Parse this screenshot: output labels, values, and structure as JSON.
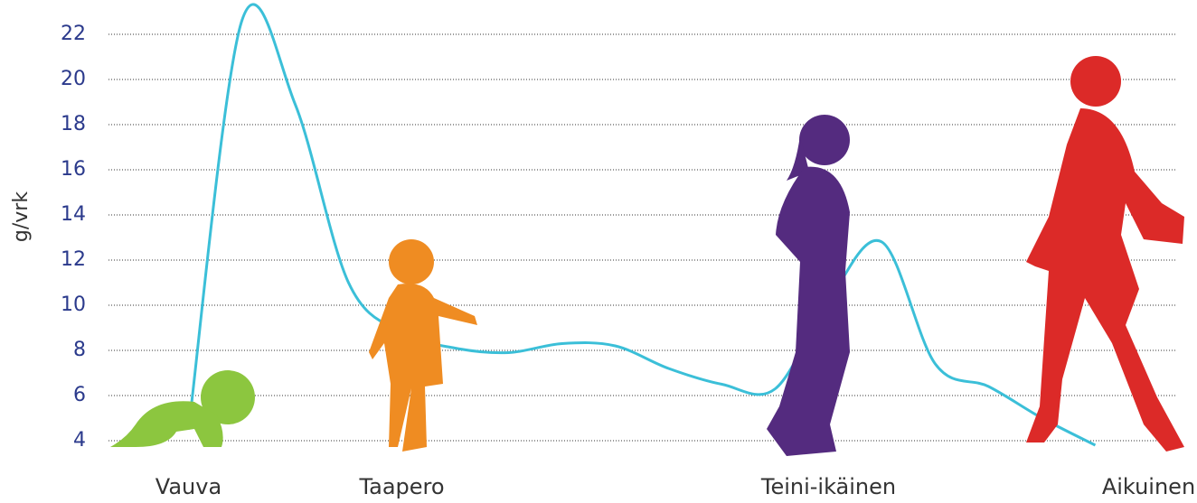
{
  "chart_data": {
    "type": "line",
    "y_label": "g/vrk",
    "categories": [
      null,
      "Vauva",
      null,
      null,
      null,
      "Taapero",
      null,
      null,
      null,
      null,
      null,
      null,
      null,
      "Teini-ikäinen",
      null,
      null,
      null,
      null,
      null,
      "Aikuinen"
    ],
    "series": [
      {
        "color": "#3bbfd8",
        "values": [
          null,
          4.5,
          22.6,
          18.9,
          11.0,
          8.8,
          8.1,
          7.9,
          8.3,
          8.2,
          7.2,
          6.5,
          6.3,
          10.2,
          12.8,
          7.4,
          6.4,
          5.0,
          3.8,
          null
        ]
      }
    ],
    "ylim": [
      3.2,
      23.2
    ],
    "yticks": [
      4,
      6,
      8,
      10,
      12,
      14,
      16,
      18,
      20,
      22
    ],
    "grid": true
  }
}
